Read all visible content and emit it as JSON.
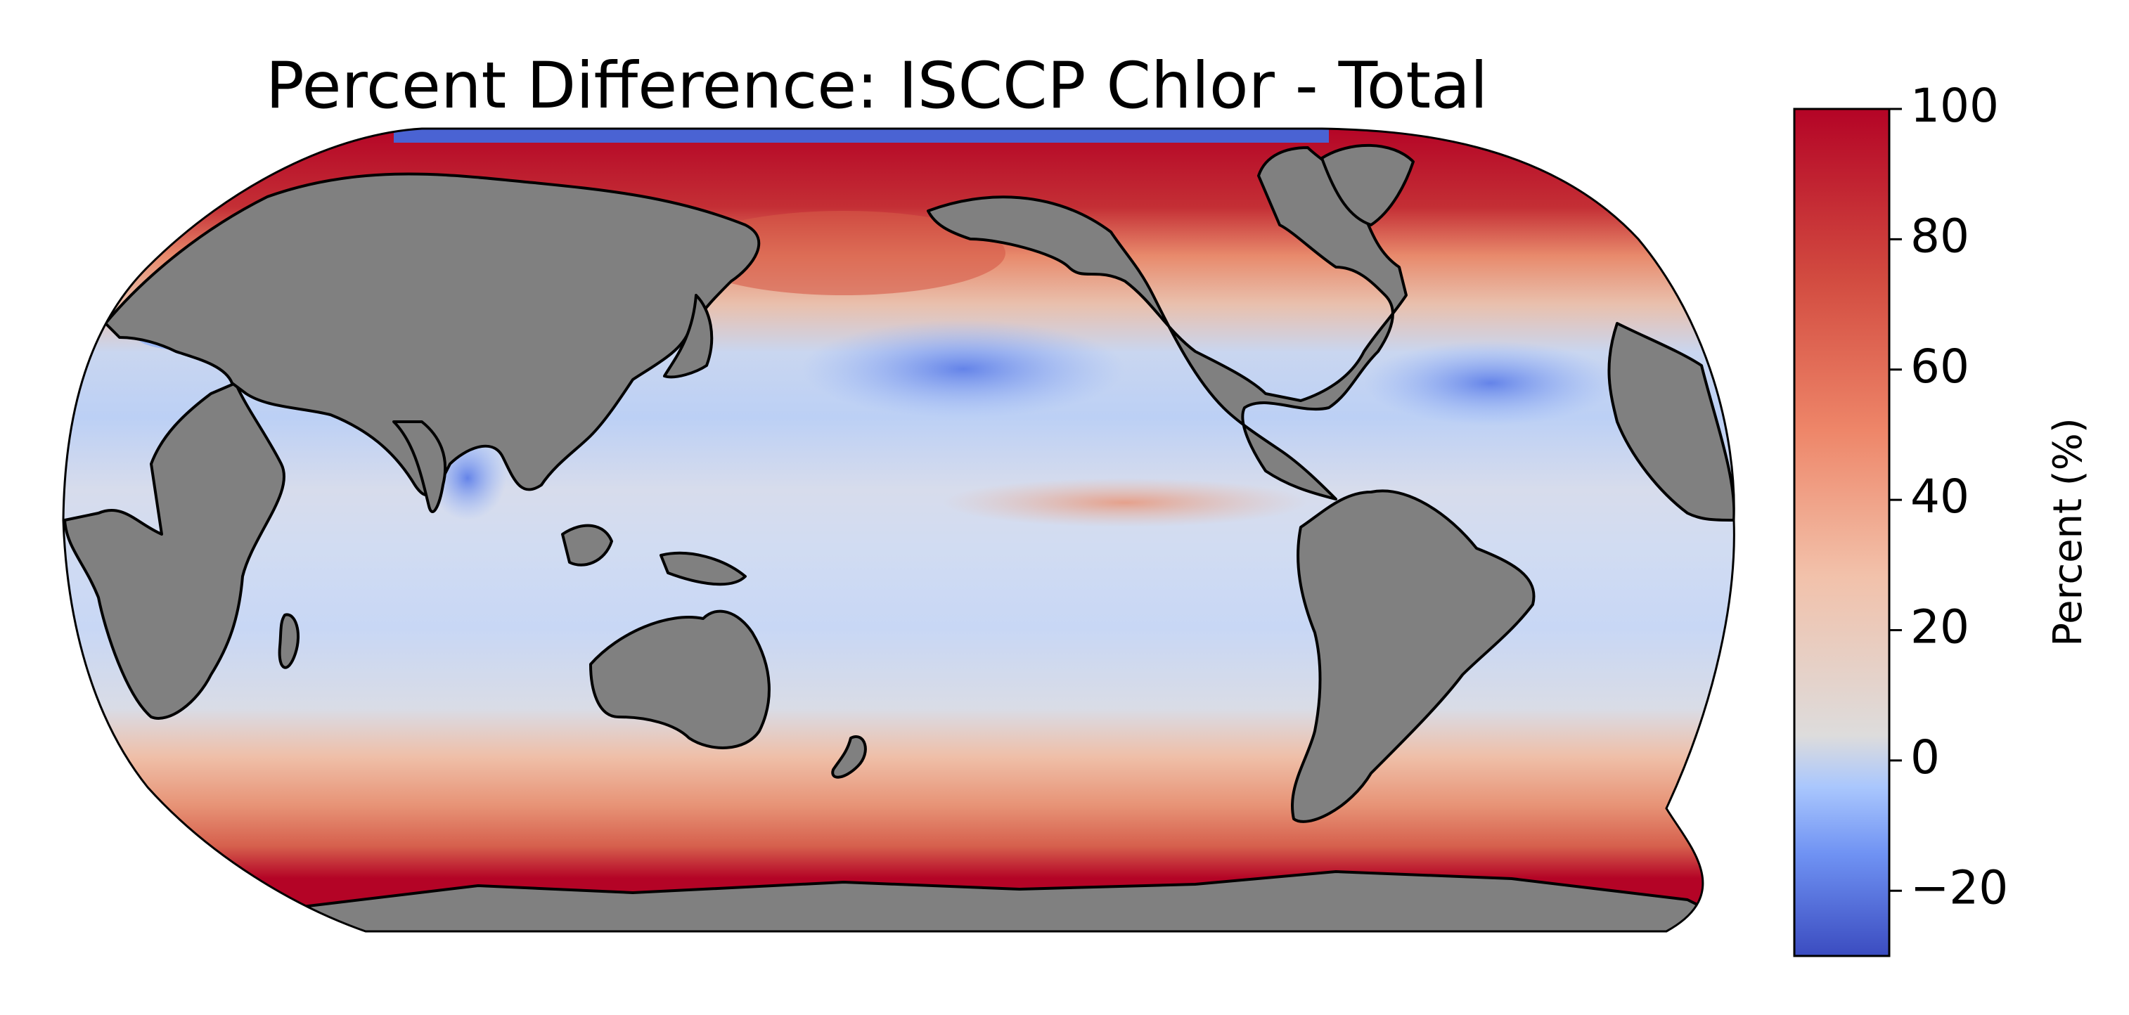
{
  "map": {
    "title": "Percent Difference: ISCCP Chlor - Total",
    "projection": "Robinson (centered on Pacific)",
    "land_color": "#808080",
    "coastline_color": "#000000",
    "missing_color": "#ffffff",
    "colormap": "coolwarm",
    "colormap_stops": [
      "#3b4cc0",
      "#6f92f3",
      "#aac7fd",
      "#dddcdc",
      "#f7b89c",
      "#e7745b",
      "#b40426"
    ],
    "visible_field_notes": [
      "Strong positive (dark red) bands in Southern Ocean and high northern latitudes",
      "Near-zero / slightly negative (light blue) across tropical and subtropical oceans",
      "Negative (blue) patch in North Pacific subtropics and Bay of Bengal"
    ]
  },
  "colorbar": {
    "label": "Percent (%)",
    "min": -30,
    "max": 100,
    "ticks": [
      {
        "value": 100,
        "label": "100"
      },
      {
        "value": 80,
        "label": "80"
      },
      {
        "value": 60,
        "label": "60"
      },
      {
        "value": 40,
        "label": "40"
      },
      {
        "value": 20,
        "label": "20"
      },
      {
        "value": 0,
        "label": "0"
      },
      {
        "value": -20,
        "label": "−20"
      }
    ]
  }
}
